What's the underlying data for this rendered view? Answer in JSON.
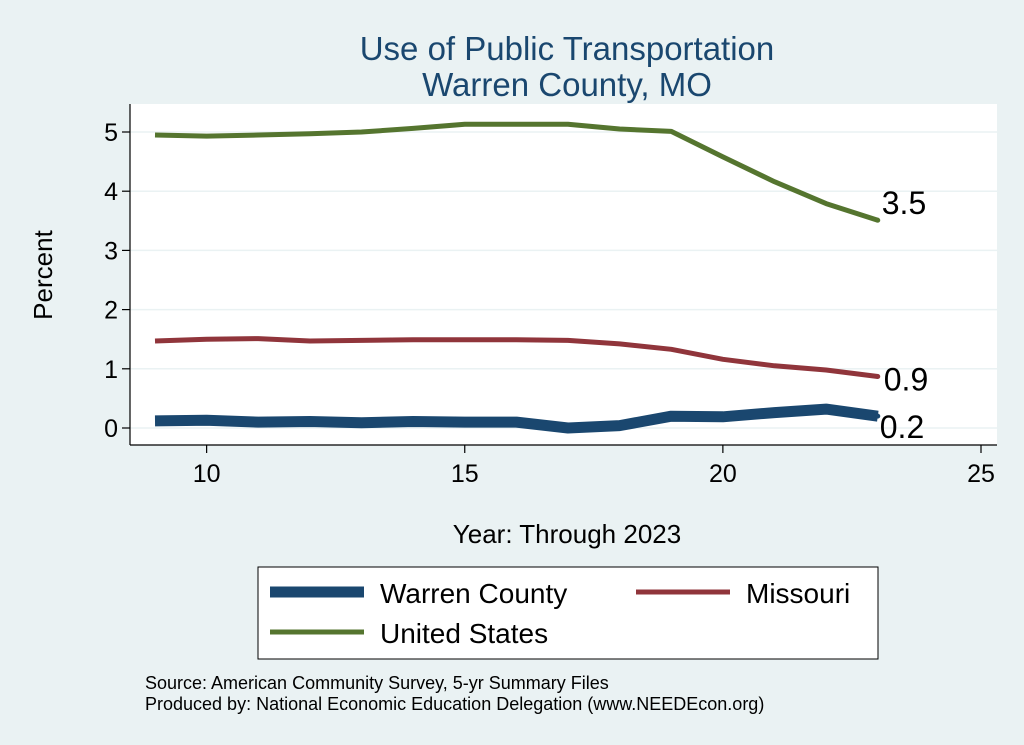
{
  "chart_data": {
    "type": "line",
    "title": [
      "Use of Public Transportation",
      "Warren County, MO"
    ],
    "xlabel": "Year: Through 2023",
    "ylabel": "Percent",
    "xlim": [
      9,
      25
    ],
    "ylim": [
      -0.25,
      5.5
    ],
    "xticks": [
      10,
      15,
      20,
      25
    ],
    "yticks": [
      0,
      1,
      2,
      3,
      4,
      5
    ],
    "grid": true,
    "legend_position": "bottom",
    "series": [
      {
        "name": "Warren County",
        "color": "#1a476f",
        "width": 11,
        "x": [
          9,
          10,
          11,
          12,
          13,
          14,
          15,
          16,
          17,
          18,
          19,
          20,
          21,
          22,
          23
        ],
        "y": [
          0.12,
          0.13,
          0.1,
          0.11,
          0.09,
          0.11,
          0.1,
          0.1,
          0.0,
          0.04,
          0.2,
          0.19,
          0.26,
          0.32,
          0.2
        ],
        "end_label": "0.2"
      },
      {
        "name": "Missouri",
        "color": "#90353b",
        "width": 5,
        "x": [
          9,
          10,
          11,
          12,
          13,
          14,
          15,
          16,
          17,
          18,
          19,
          20,
          21,
          22,
          23
        ],
        "y": [
          1.47,
          1.5,
          1.51,
          1.47,
          1.48,
          1.49,
          1.49,
          1.49,
          1.48,
          1.42,
          1.33,
          1.16,
          1.05,
          0.98,
          0.87
        ],
        "end_label": "0.9"
      },
      {
        "name": "United States",
        "color": "#55752f",
        "width": 5,
        "x": [
          9,
          10,
          11,
          12,
          13,
          14,
          15,
          16,
          17,
          18,
          19,
          20,
          21,
          22,
          23
        ],
        "y": [
          4.95,
          4.93,
          4.95,
          4.97,
          5.0,
          5.06,
          5.13,
          5.13,
          5.13,
          5.05,
          5.01,
          4.58,
          4.16,
          3.79,
          3.51
        ],
        "end_label": "3.5"
      }
    ],
    "notes": [
      "Source: American Community Survey, 5-yr Summary Files",
      "Produced by: National Economic Education Delegation (www.NEEDEcon.org)"
    ]
  }
}
